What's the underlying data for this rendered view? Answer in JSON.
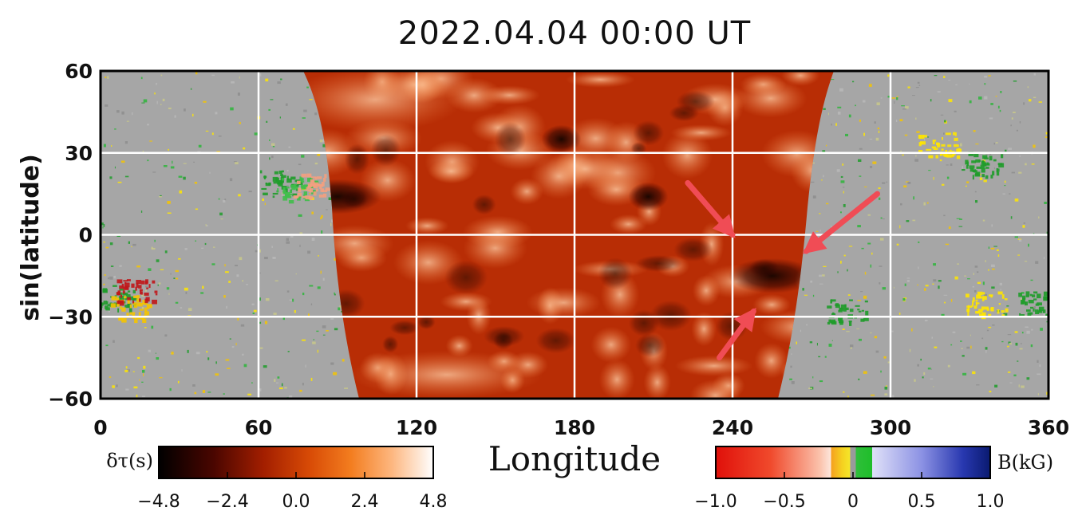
{
  "chart_data": {
    "type": "heatmap",
    "title": "2022.04.04  00:00  UT",
    "xlabel": "Longitude",
    "ylabel": "sin(latitude)",
    "xlim": [
      0,
      360
    ],
    "ylim": [
      -60,
      60
    ],
    "x_ticks": [
      "0",
      "60",
      "120",
      "180",
      "240",
      "300",
      "360"
    ],
    "y_ticks": [
      "60",
      "30",
      "0",
      "−30",
      "−60"
    ],
    "grid": true,
    "grid_color": "#ffffff",
    "farside_map": {
      "quantity": "δτ(s)",
      "longitude_range_equator": [
        88,
        268
      ],
      "dark_features": [
        {
          "lon": 90,
          "lat": 14
        },
        {
          "lon": 255,
          "lat": -15
        },
        {
          "lon": 208,
          "lat": 14
        },
        {
          "lon": 175,
          "lat": 35
        }
      ]
    },
    "arrows": [
      {
        "tail_lon": 223,
        "tail_lat": 19,
        "head_lon": 240,
        "head_lat": 0,
        "color": "#f04c55"
      },
      {
        "tail_lon": 295,
        "tail_lat": 15,
        "head_lon": 268,
        "head_lat": -6,
        "color": "#f04c55"
      },
      {
        "tail_lon": 235,
        "tail_lat": -45,
        "head_lon": 248,
        "head_lat": -28,
        "color": "#f04c55"
      }
    ],
    "colorbars": [
      {
        "label": "δτ(s)",
        "ticks": [
          "−4.8",
          "−2.4",
          "0.0",
          "2.4",
          "4.8"
        ],
        "range": [
          -4.8,
          4.8
        ]
      },
      {
        "label": "B(kG)",
        "ticks": [
          "−1.0",
          "−0.5",
          "0",
          "0.5",
          "1.0"
        ],
        "range": [
          -1.0,
          1.0
        ]
      }
    ]
  }
}
